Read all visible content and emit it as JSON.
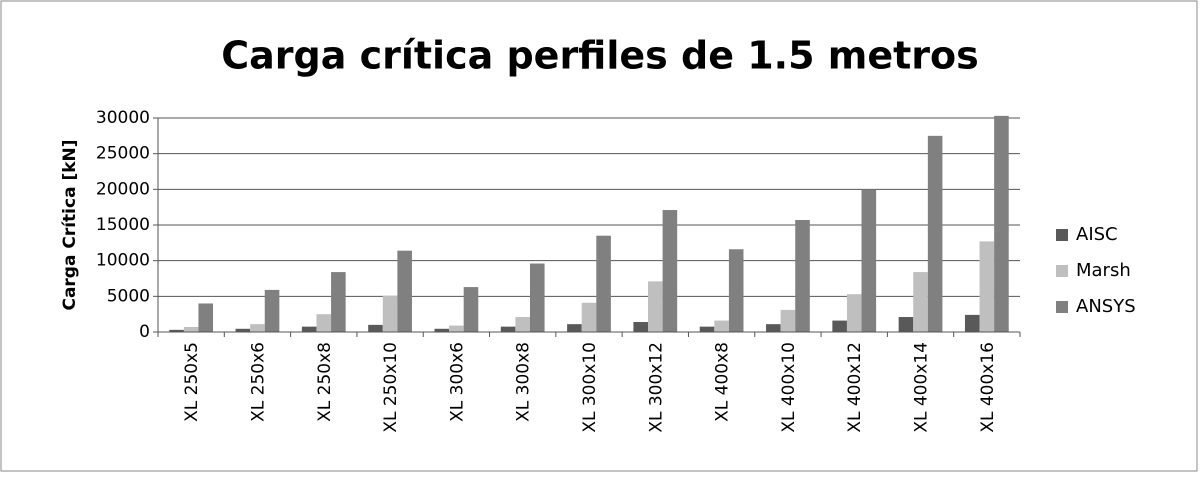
{
  "chart_data": {
    "type": "bar",
    "title": "Carga crítica perfiles de 1.5 metros",
    "y_label": "Carga Crítica [kN]",
    "categories": [
      "XL 250x5",
      "XL 250x6",
      "XL 250x8",
      "XL 250x10",
      "XL 300x6",
      "XL 300x8",
      "XL 300x10",
      "XL 300x12",
      "XL 400x8",
      "XL 400x10",
      "XL 400x12",
      "XL 400x14",
      "XL 400x16"
    ],
    "series": [
      {
        "name": "AISC",
        "color": "#595959",
        "values": [
          300,
          450,
          750,
          1000,
          450,
          750,
          1100,
          1400,
          750,
          1100,
          1600,
          2100,
          2400
        ]
      },
      {
        "name": "Marsh",
        "color": "#bfbfbf",
        "values": [
          700,
          1100,
          2500,
          5100,
          900,
          2100,
          4100,
          7100,
          1600,
          3100,
          5300,
          8400,
          12700
        ]
      },
      {
        "name": "ANSYS",
        "color": "#808080",
        "values": [
          4000,
          5900,
          8400,
          11400,
          6300,
          9600,
          13500,
          17100,
          11600,
          15700,
          20000,
          27500,
          30300
        ]
      }
    ],
    "ylim": [
      0,
      30000
    ],
    "yticks": [
      0,
      5000,
      10000,
      15000,
      20000,
      25000,
      30000
    ],
    "grid": true,
    "legend": "right"
  }
}
